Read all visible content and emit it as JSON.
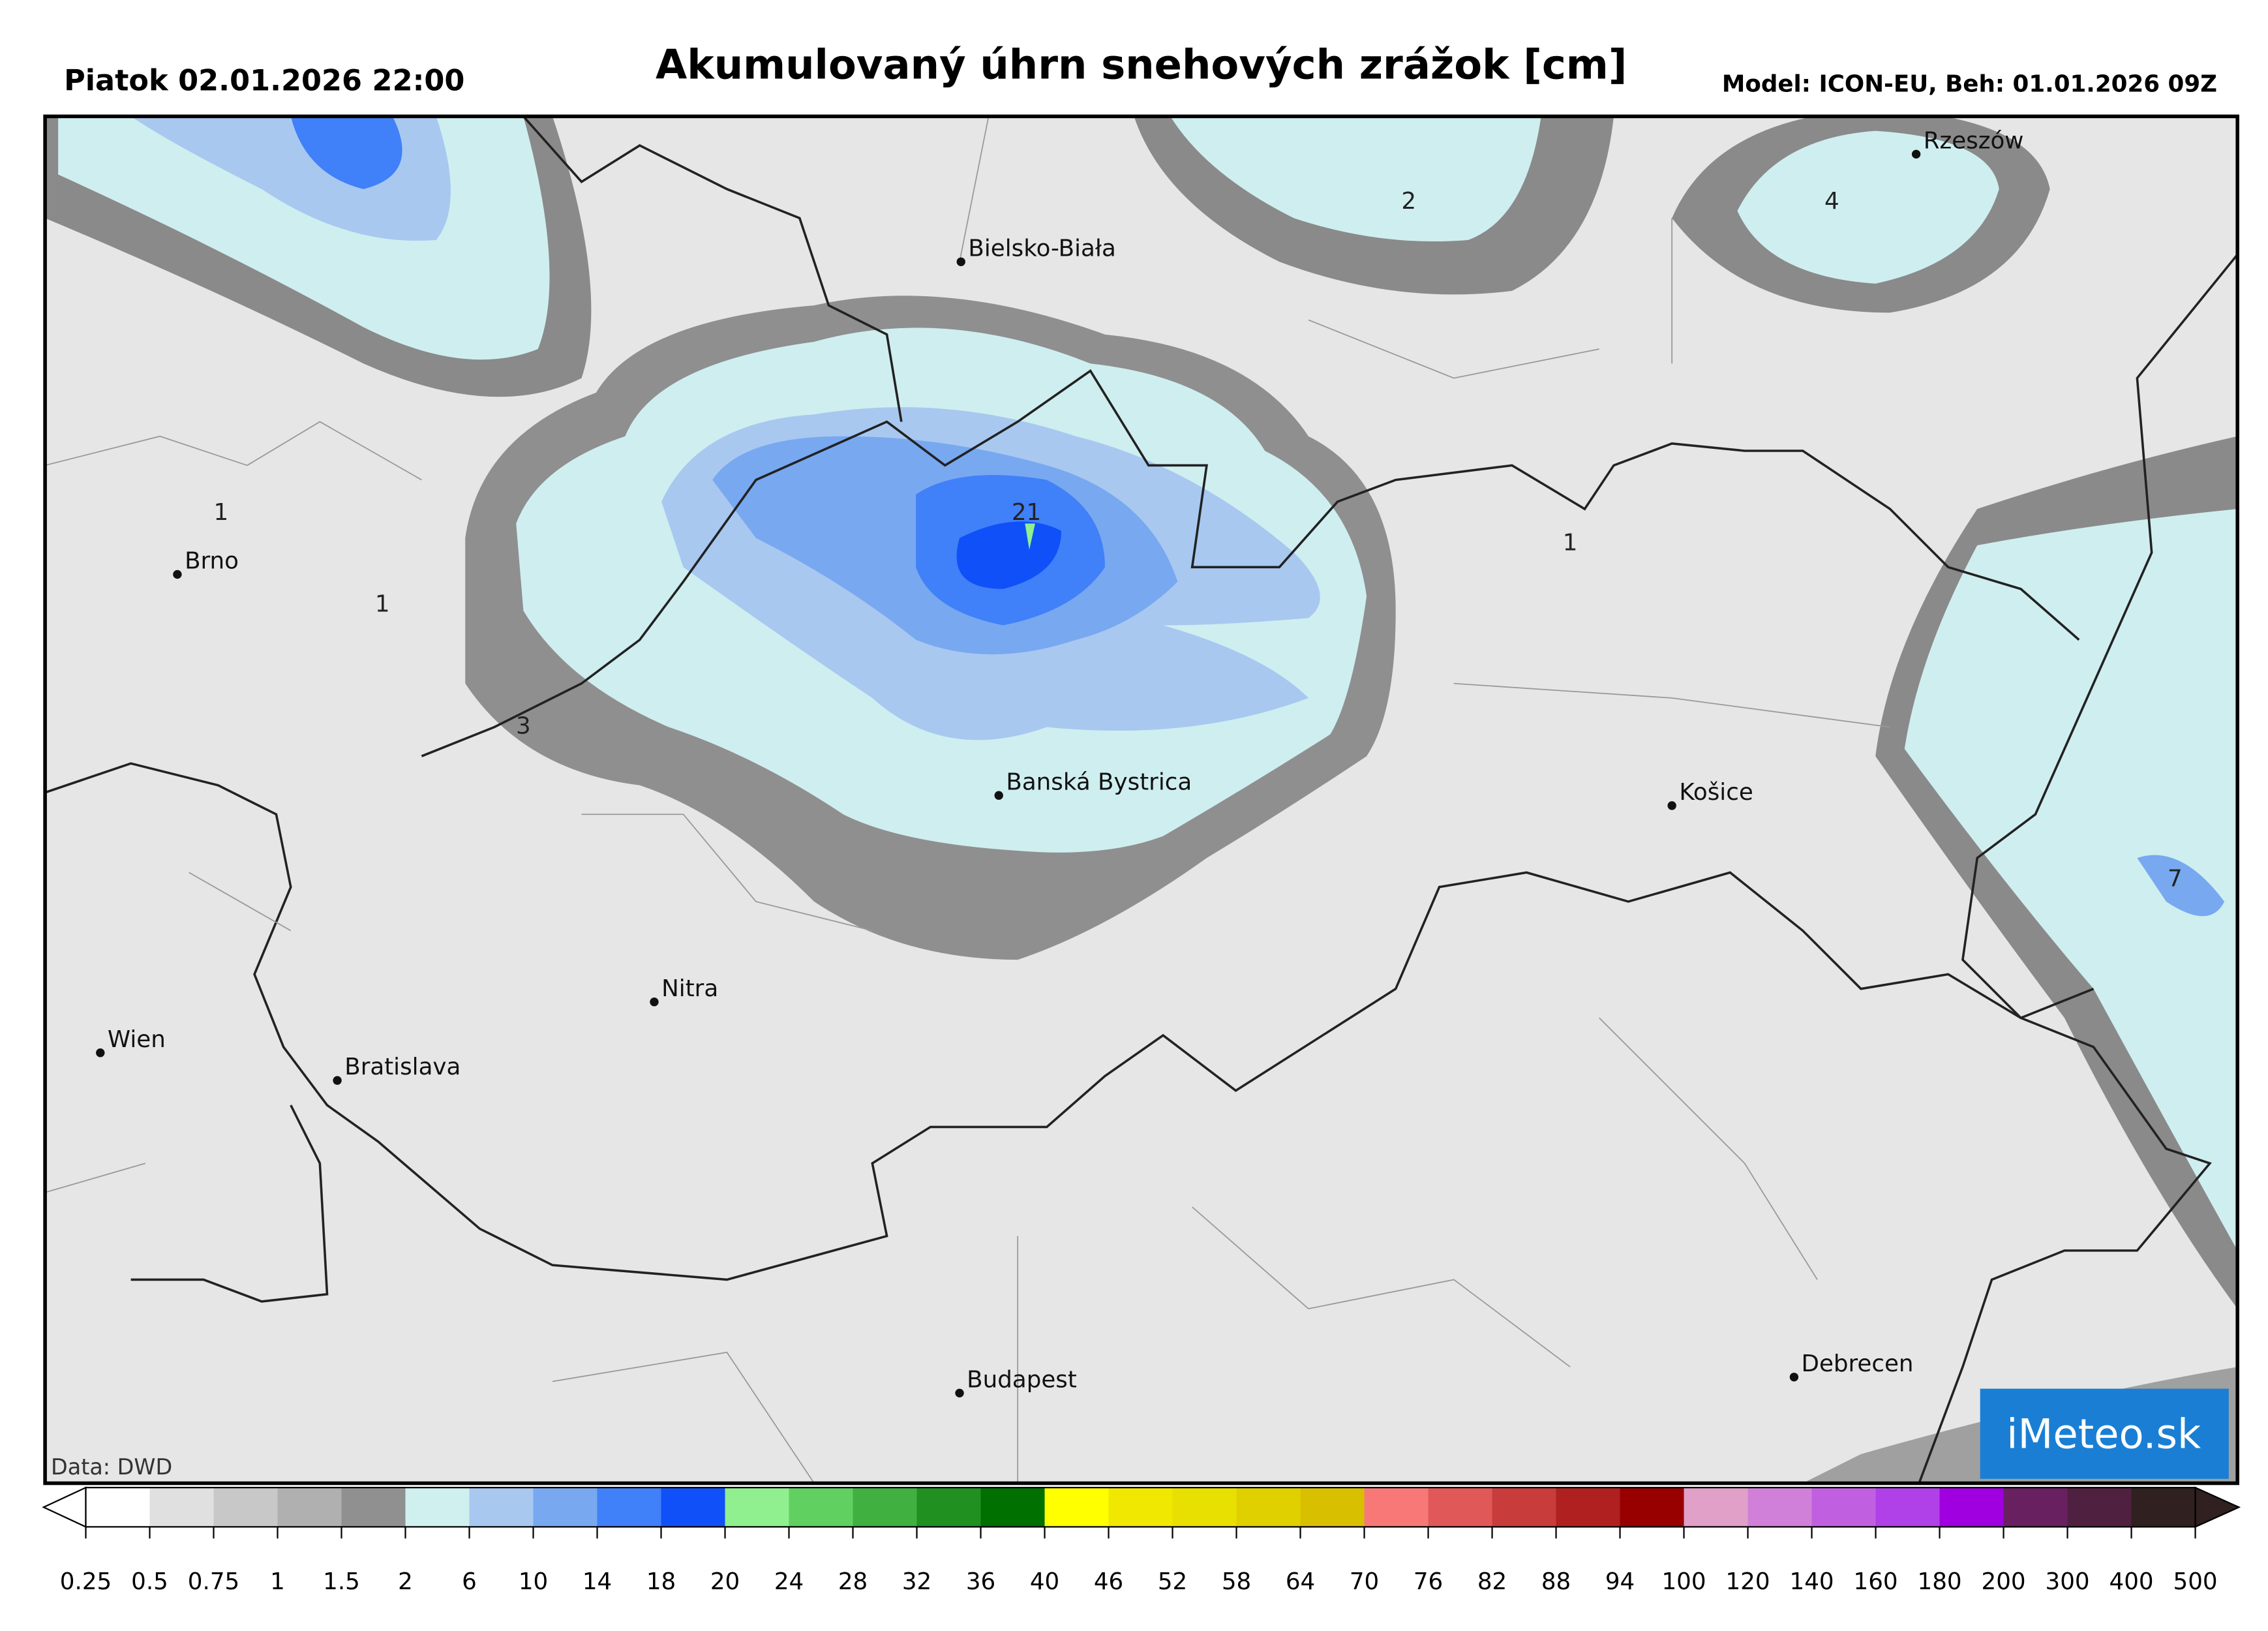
{
  "header": {
    "date": "Piatok 02.01.2026 22:00",
    "title": "Akumulovaný úhrn snehových zrážok [cm]",
    "model": "Model: ICON-EU, Beh: 01.01.2026 09Z"
  },
  "map": {
    "cities": [
      "Brno",
      "Bielsko-Biała",
      "Rzeszów",
      "Banská Bystrica",
      "Košice",
      "Nitra",
      "Wien",
      "Bratislava",
      "Budapest",
      "Debrecen"
    ],
    "contour_labels": [
      "1",
      "1",
      "3",
      "21",
      "2",
      "4",
      "1",
      "7"
    ],
    "credit": "Data: DWD",
    "logo": "iMeteo.sk"
  },
  "colorbar": {
    "ticks": [
      0.25,
      0.5,
      0.75,
      1,
      1.5,
      2,
      6,
      10,
      14,
      18,
      20,
      24,
      28,
      32,
      36,
      40,
      46,
      52,
      58,
      64,
      70,
      76,
      82,
      88,
      94,
      100,
      120,
      140,
      160,
      180,
      200,
      300,
      400,
      500
    ],
    "colors": [
      "#ffffff",
      "#e0e0e0",
      "#c8c8c8",
      "#b0b0b0",
      "#909090",
      "#d0f0f0",
      "#a8c8f0",
      "#78a8f0",
      "#4080f8",
      "#1050f8",
      "#90f090",
      "#60d060",
      "#40b040",
      "#209020",
      "#007000",
      "#ffff00",
      "#f0e800",
      "#e8e000",
      "#e0d000",
      "#d8c000",
      "#f87878",
      "#e05858",
      "#c83c3c",
      "#b02020",
      "#980000",
      "#e0a0c8",
      "#d080d8",
      "#c060e0",
      "#b040e8",
      "#a000e0",
      "#682060",
      "#502040",
      "#302020"
    ]
  }
}
